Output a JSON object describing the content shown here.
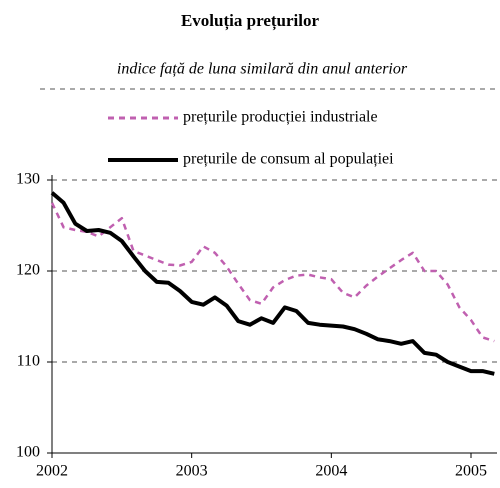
{
  "chart_data": {
    "type": "line",
    "title": "Evoluția prețurilor",
    "subtitle": "indice față de luna similară din anul anterior",
    "categories": [
      "2002",
      null,
      null,
      null,
      null,
      null,
      null,
      null,
      null,
      null,
      null,
      null,
      "2003",
      null,
      null,
      null,
      null,
      null,
      null,
      null,
      null,
      null,
      null,
      null,
      "2004",
      null,
      null,
      null,
      null,
      null,
      null,
      null,
      null,
      null,
      null,
      null,
      "2005",
      null,
      null
    ],
    "series": [
      {
        "name": "prețurile producției industriale",
        "color": "#c060b0",
        "dashed": true,
        "values": [
          127.5,
          124.8,
          124.5,
          124.3,
          123.8,
          124.8,
          125.8,
          122.2,
          121.7,
          121.2,
          120.7,
          120.6,
          121.0,
          122.7,
          122.0,
          120.5,
          118.6,
          116.8,
          116.4,
          118.2,
          119.0,
          119.5,
          119.6,
          119.3,
          119.1,
          117.6,
          117.1,
          118.4,
          119.4,
          120.3,
          121.2,
          122.0,
          120.0,
          120.0,
          118.5,
          116.0,
          114.6,
          112.7,
          112.3
        ]
      },
      {
        "name": "prețurile de consum al populației",
        "color": "#000000",
        "dashed": false,
        "values": [
          128.6,
          127.5,
          125.2,
          124.4,
          124.5,
          124.2,
          123.3,
          121.6,
          120.0,
          118.8,
          118.7,
          117.8,
          116.6,
          116.3,
          117.1,
          116.2,
          114.5,
          114.1,
          114.8,
          114.3,
          116.0,
          115.6,
          114.3,
          114.1,
          114.0,
          113.9,
          113.6,
          113.1,
          112.5,
          112.3,
          112.0,
          112.3,
          111.0,
          110.8,
          110.0,
          109.5,
          109.0,
          109.0,
          108.7
        ]
      }
    ],
    "ylim": [
      100,
      140
    ],
    "yticks": [
      100,
      110,
      120,
      130
    ],
    "grid": true
  }
}
